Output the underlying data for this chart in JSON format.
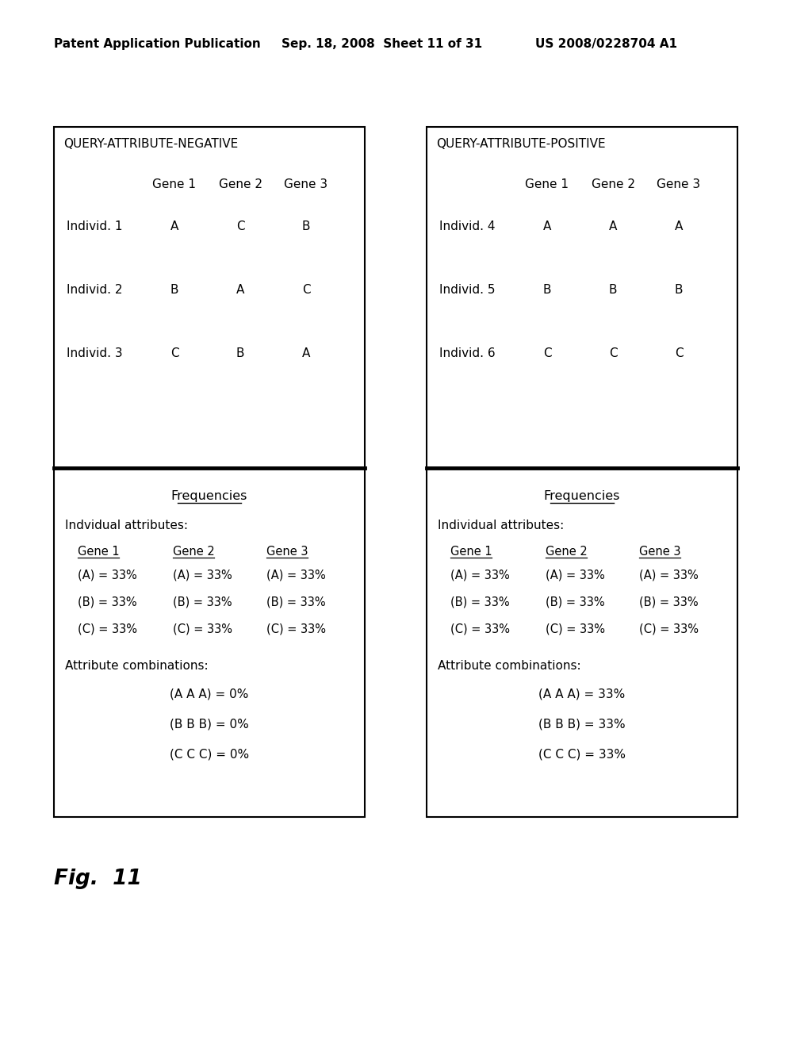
{
  "header_left": "Patent Application Publication",
  "header_center": "Sep. 18, 2008  Sheet 11 of 31",
  "header_right": "US 2008/0228704 A1",
  "fig_label": "Fig.  11",
  "left_box_title": "QUERY-ATTRIBUTE-NEGATIVE",
  "right_box_title": "QUERY-ATTRIBUTE-POSITIVE",
  "gene_headers": [
    "Gene 1",
    "Gene 2",
    "Gene 3"
  ],
  "left_individuals": [
    [
      "Individ. 1",
      "A",
      "C",
      "B"
    ],
    [
      "Individ. 2",
      "B",
      "A",
      "C"
    ],
    [
      "Individ. 3",
      "C",
      "B",
      "A"
    ]
  ],
  "right_individuals": [
    [
      "Individ. 4",
      "A",
      "A",
      "A"
    ],
    [
      "Individ. 5",
      "B",
      "B",
      "B"
    ],
    [
      "Individ. 6",
      "C",
      "C",
      "C"
    ]
  ],
  "freq_title": "Frequencies",
  "left_indiv_attr_label": "Indvidual attributes:",
  "right_indiv_attr_label": "Individual attributes:",
  "gene_col_headers": [
    "Gene 1",
    "Gene 2",
    "Gene 3"
  ],
  "freq_rows": [
    [
      "(A) = 33%",
      "(A) = 33%",
      "(A) = 33%"
    ],
    [
      "(B) = 33%",
      "(B) = 33%",
      "(B) = 33%"
    ],
    [
      "(C) = 33%",
      "(C) = 33%",
      "(C) = 33%"
    ]
  ],
  "attr_comb_label": "Attribute combinations:",
  "left_combinations": [
    "(A A A) = 0%",
    "(B B B) = 0%",
    "(C C C) = 0%"
  ],
  "right_combinations": [
    "(A A A) = 33%",
    "(B B B) = 33%",
    "(C C C) = 33%"
  ],
  "bg_color": "#ffffff",
  "text_color": "#000000",
  "box_edge_color": "#000000"
}
